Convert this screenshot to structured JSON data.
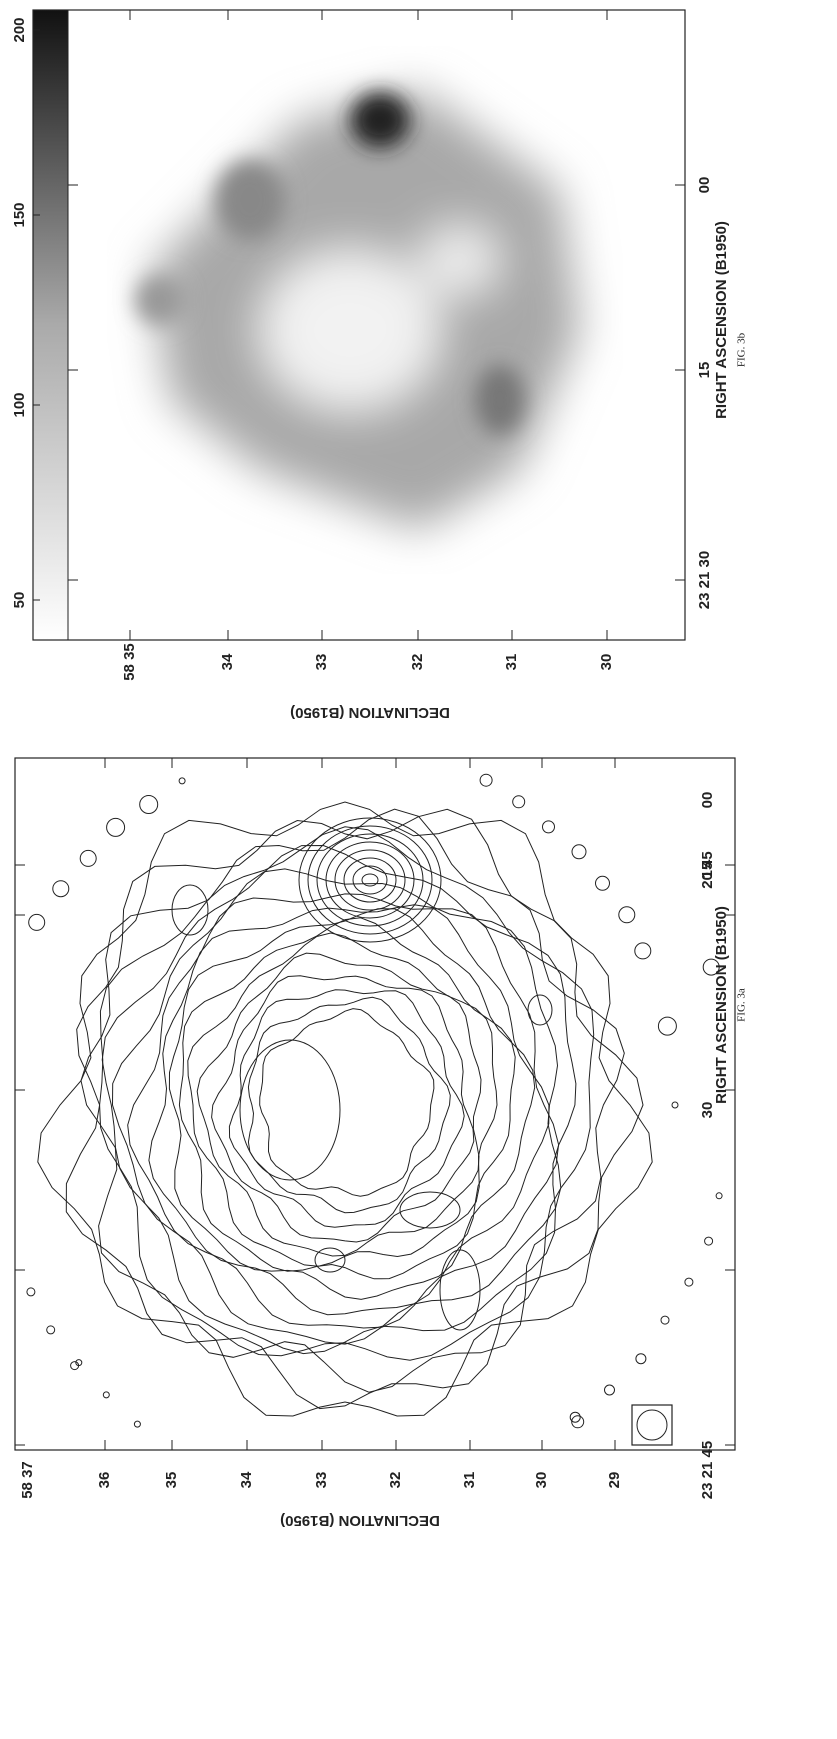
{
  "figure_3b": {
    "caption": "FIG. 3b",
    "colorbar_ticks": [
      "50",
      "100",
      "150",
      "200"
    ],
    "declination_ticks": [
      "58 35",
      "34",
      "33",
      "32",
      "31",
      "30"
    ],
    "ra_ticks": [
      "23 21 30",
      "15",
      "00"
    ],
    "x_label": "RIGHT ASCENSION (B1950)",
    "y_label": "DECLINATION (B1950)"
  },
  "figure_3a": {
    "caption": "FIG. 3a",
    "declination_ticks": [
      "58 37",
      "36",
      "35",
      "34",
      "33",
      "32",
      "31",
      "30",
      "29"
    ],
    "ra_ticks": [
      "23 21 45",
      "30",
      "15",
      "00",
      "20 45"
    ],
    "x_label": "RIGHT ASCENSION (B1950)",
    "y_label": "DECLINATION (B1950)"
  }
}
